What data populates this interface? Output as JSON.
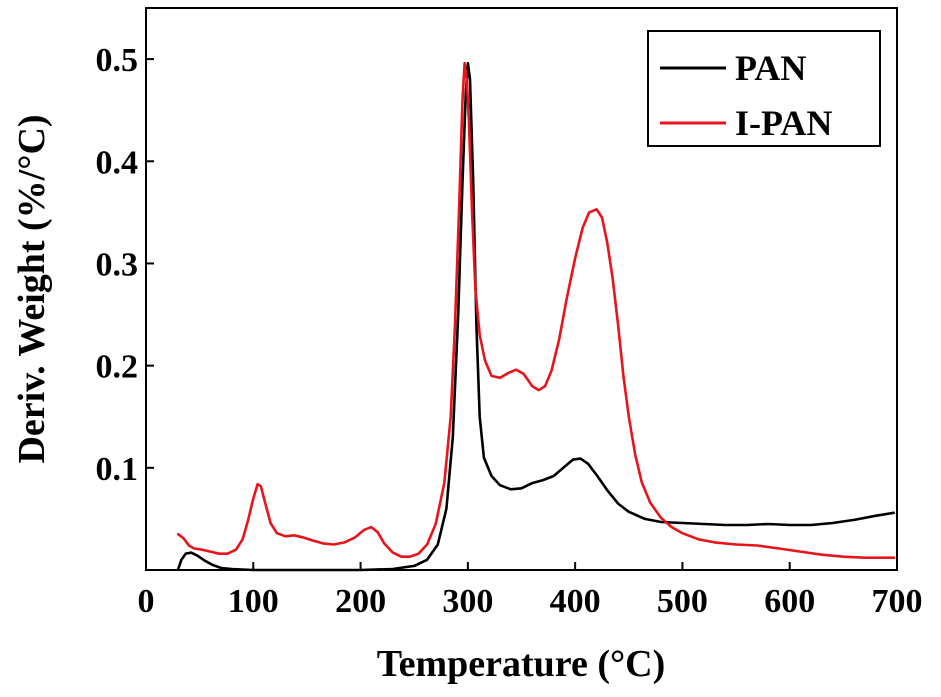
{
  "chart_data": {
    "type": "line",
    "title": "",
    "xlabel": "Temperature (°C)",
    "ylabel": "Deriv. Weight (%/°C)",
    "xlim": [
      0,
      700
    ],
    "ylim": [
      0,
      0.55
    ],
    "xticks": [
      0,
      100,
      200,
      300,
      400,
      500,
      600,
      700
    ],
    "yticks": [
      0.1,
      0.2,
      0.3,
      0.4,
      0.5
    ],
    "xtick_labels": [
      "0",
      "100",
      "200",
      "300",
      "400",
      "500",
      "600",
      "700"
    ],
    "ytick_labels": [
      "0.1",
      "0.2",
      "0.3",
      "0.4",
      "0.5"
    ],
    "grid": false,
    "legend_position": "top-right",
    "series": [
      {
        "name": "PAN",
        "color": "#000000",
        "points": [
          [
            30,
            0.001
          ],
          [
            33,
            0.01
          ],
          [
            37,
            0.016
          ],
          [
            42,
            0.017
          ],
          [
            48,
            0.014
          ],
          [
            55,
            0.009
          ],
          [
            62,
            0.005
          ],
          [
            70,
            0.002
          ],
          [
            80,
            0.001
          ],
          [
            100,
            0.0
          ],
          [
            200,
            0.0
          ],
          [
            230,
            0.001
          ],
          [
            250,
            0.004
          ],
          [
            262,
            0.01
          ],
          [
            272,
            0.025
          ],
          [
            280,
            0.06
          ],
          [
            286,
            0.13
          ],
          [
            291,
            0.25
          ],
          [
            295,
            0.38
          ],
          [
            298,
            0.465
          ],
          [
            300,
            0.496
          ],
          [
            302,
            0.48
          ],
          [
            305,
            0.38
          ],
          [
            308,
            0.24
          ],
          [
            311,
            0.15
          ],
          [
            315,
            0.11
          ],
          [
            322,
            0.092
          ],
          [
            330,
            0.083
          ],
          [
            340,
            0.079
          ],
          [
            350,
            0.08
          ],
          [
            360,
            0.085
          ],
          [
            370,
            0.088
          ],
          [
            380,
            0.092
          ],
          [
            390,
            0.101
          ],
          [
            398,
            0.108
          ],
          [
            405,
            0.109
          ],
          [
            412,
            0.104
          ],
          [
            420,
            0.093
          ],
          [
            430,
            0.078
          ],
          [
            440,
            0.065
          ],
          [
            450,
            0.057
          ],
          [
            465,
            0.05
          ],
          [
            480,
            0.047
          ],
          [
            500,
            0.046
          ],
          [
            520,
            0.045
          ],
          [
            540,
            0.044
          ],
          [
            560,
            0.044
          ],
          [
            580,
            0.045
          ],
          [
            600,
            0.044
          ],
          [
            620,
            0.044
          ],
          [
            640,
            0.046
          ],
          [
            660,
            0.049
          ],
          [
            680,
            0.053
          ],
          [
            697,
            0.056
          ]
        ]
      },
      {
        "name": "I-PAN",
        "color": "#e8141b",
        "points": [
          [
            30,
            0.035
          ],
          [
            35,
            0.031
          ],
          [
            40,
            0.024
          ],
          [
            45,
            0.021
          ],
          [
            52,
            0.02
          ],
          [
            60,
            0.018
          ],
          [
            68,
            0.016
          ],
          [
            76,
            0.016
          ],
          [
            84,
            0.02
          ],
          [
            90,
            0.03
          ],
          [
            95,
            0.048
          ],
          [
            100,
            0.07
          ],
          [
            104,
            0.084
          ],
          [
            107,
            0.082
          ],
          [
            111,
            0.066
          ],
          [
            116,
            0.046
          ],
          [
            122,
            0.036
          ],
          [
            130,
            0.033
          ],
          [
            138,
            0.034
          ],
          [
            146,
            0.032
          ],
          [
            155,
            0.029
          ],
          [
            165,
            0.026
          ],
          [
            175,
            0.025
          ],
          [
            185,
            0.027
          ],
          [
            195,
            0.032
          ],
          [
            203,
            0.039
          ],
          [
            210,
            0.042
          ],
          [
            216,
            0.037
          ],
          [
            222,
            0.026
          ],
          [
            230,
            0.017
          ],
          [
            238,
            0.013
          ],
          [
            246,
            0.013
          ],
          [
            254,
            0.016
          ],
          [
            262,
            0.025
          ],
          [
            270,
            0.045
          ],
          [
            278,
            0.085
          ],
          [
            284,
            0.15
          ],
          [
            288,
            0.24
          ],
          [
            292,
            0.36
          ],
          [
            295,
            0.46
          ],
          [
            297,
            0.496
          ],
          [
            299,
            0.48
          ],
          [
            301,
            0.44
          ],
          [
            304,
            0.35
          ],
          [
            307,
            0.275
          ],
          [
            311,
            0.23
          ],
          [
            316,
            0.205
          ],
          [
            322,
            0.19
          ],
          [
            330,
            0.188
          ],
          [
            338,
            0.193
          ],
          [
            345,
            0.196
          ],
          [
            352,
            0.192
          ],
          [
            360,
            0.18
          ],
          [
            366,
            0.176
          ],
          [
            372,
            0.18
          ],
          [
            378,
            0.195
          ],
          [
            385,
            0.225
          ],
          [
            392,
            0.265
          ],
          [
            400,
            0.305
          ],
          [
            407,
            0.335
          ],
          [
            413,
            0.35
          ],
          [
            420,
            0.353
          ],
          [
            425,
            0.345
          ],
          [
            430,
            0.32
          ],
          [
            435,
            0.285
          ],
          [
            440,
            0.24
          ],
          [
            445,
            0.19
          ],
          [
            450,
            0.15
          ],
          [
            456,
            0.113
          ],
          [
            462,
            0.086
          ],
          [
            470,
            0.066
          ],
          [
            480,
            0.051
          ],
          [
            490,
            0.042
          ],
          [
            500,
            0.036
          ],
          [
            515,
            0.03
          ],
          [
            530,
            0.027
          ],
          [
            550,
            0.025
          ],
          [
            570,
            0.024
          ],
          [
            590,
            0.021
          ],
          [
            610,
            0.018
          ],
          [
            630,
            0.015
          ],
          [
            650,
            0.013
          ],
          [
            670,
            0.012
          ],
          [
            697,
            0.012
          ]
        ]
      }
    ]
  }
}
